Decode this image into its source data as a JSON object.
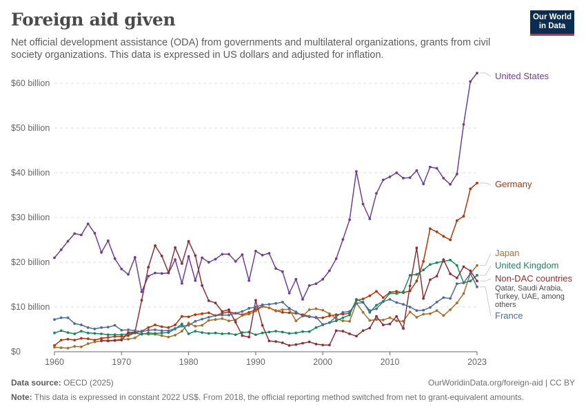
{
  "header": {
    "title": "Foreign aid given",
    "subtitle": "Net official development assistance (ODA) from governments and multilateral organizations, grants from civil society organizations. This data is expressed in US dollars and adjusted for inflation.",
    "logo_line1": "Our World",
    "logo_line2": "in Data"
  },
  "footer": {
    "source_label": "Data source:",
    "source_text": "OECD (2025)",
    "license": "OurWorldinData.org/foreign-aid | CC BY",
    "note_label": "Note:",
    "note_text": "This data is expressed in constant 2022 US$. From 2018, the official reporting method switched from net to grant-equivalent amounts."
  },
  "chart_data": {
    "type": "line",
    "x_start": 1960,
    "xlim": [
      1960,
      2023
    ],
    "ylim": [
      0,
      62
    ],
    "y_ticks": [
      0,
      10,
      20,
      30,
      40,
      50,
      60
    ],
    "y_tick_labels": [
      "$0",
      "$10 billion",
      "$20 billion",
      "$30 billion",
      "$40 billion",
      "$50 billion",
      "$60 billion"
    ],
    "x_ticks": [
      1960,
      1970,
      1980,
      1990,
      2000,
      2010,
      2023
    ],
    "x_tick_labels": [
      "1960",
      "1970",
      "1980",
      "1990",
      "2000",
      "2010",
      "2023"
    ],
    "grid": "horizontal dashed",
    "legend": "right, labels at line ends",
    "series": [
      {
        "name": "United States",
        "color": "#6d3e91",
        "values": [
          21.0,
          22.8,
          24.7,
          26.4,
          26.1,
          28.6,
          26.5,
          22.2,
          24.8,
          20.8,
          18.5,
          17.3,
          21.1,
          13.4,
          16.9,
          17.6,
          17.5,
          17.6,
          20.6,
          15.3,
          21.3,
          15.9,
          21.0,
          20.0,
          20.7,
          21.8,
          21.8,
          20.2,
          21.7,
          15.9,
          22.5,
          21.6,
          22.0,
          18.6,
          17.9,
          13.1,
          16.2,
          11.7,
          14.8,
          15.2,
          16.2,
          18.1,
          20.8,
          25.1,
          29.5,
          40.3,
          33.0,
          29.7,
          35.4,
          38.4,
          39.1,
          40.0,
          38.8,
          38.9,
          40.5,
          37.5,
          41.3,
          41.0,
          38.8,
          37.4,
          39.7,
          50.8,
          60.4,
          62.3
        ],
        "end_label": [
          "United States"
        ]
      },
      {
        "name": "Germany",
        "color": "#b13507",
        "values": [
          1.4,
          2.6,
          2.8,
          2.6,
          3.0,
          2.9,
          2.6,
          3.0,
          3.2,
          3.4,
          3.4,
          3.6,
          4.2,
          4.6,
          5.4,
          6.0,
          5.6,
          5.4,
          6.0,
          7.9,
          7.8,
          8.3,
          8.5,
          8.7,
          8.1,
          8.6,
          8.9,
          8.6,
          8.3,
          8.8,
          9.4,
          10.2,
          9.8,
          9.2,
          8.8,
          8.7,
          8.6,
          8.3,
          7.9,
          7.6,
          7.6,
          8.0,
          8.3,
          8.4,
          8.6,
          11.5,
          11.8,
          12.5,
          13.5,
          12.1,
          13.3,
          13.5,
          13.2,
          13.6,
          15.8,
          20.2,
          27.5,
          26.8,
          25.8,
          25.0,
          29.3,
          30.3,
          36.4,
          37.7
        ],
        "end_label": [
          "Germany"
        ]
      },
      {
        "name": "Japan",
        "color": "#a2702d",
        "values": [
          1.0,
          0.9,
          0.8,
          1.2,
          1.1,
          1.8,
          2.2,
          2.4,
          2.5,
          2.6,
          2.8,
          2.8,
          3.1,
          4.1,
          3.9,
          3.9,
          3.6,
          3.3,
          3.7,
          4.6,
          6.4,
          5.7,
          5.9,
          7.0,
          7.2,
          7.4,
          6.9,
          7.1,
          8.1,
          8.4,
          9.1,
          10.1,
          9.8,
          9.1,
          9.4,
          9.5,
          6.9,
          8.0,
          9.4,
          9.6,
          9.3,
          8.5,
          7.4,
          6.9,
          6.8,
          10.9,
          8.8,
          7.0,
          7.2,
          7.1,
          7.6,
          6.9,
          6.8,
          8.9,
          7.7,
          8.4,
          8.5,
          9.2,
          8.1,
          9.4,
          10.9,
          13.0,
          17.5,
          19.3
        ],
        "end_label": [
          "Japan"
        ]
      },
      {
        "name": "United Kingdom",
        "color": "#18875d",
        "values": [
          4.2,
          4.7,
          4.3,
          4.0,
          4.6,
          4.2,
          4.1,
          4.0,
          3.8,
          3.8,
          3.8,
          4.0,
          4.2,
          3.9,
          4.2,
          4.1,
          4.2,
          4.3,
          5.1,
          6.2,
          4.0,
          4.6,
          4.3,
          4.1,
          4.2,
          4.0,
          4.1,
          3.8,
          4.3,
          4.4,
          3.8,
          4.2,
          4.4,
          4.6,
          4.4,
          4.1,
          4.2,
          4.5,
          4.5,
          5.4,
          6.0,
          6.5,
          6.9,
          7.6,
          8.2,
          11.7,
          11.1,
          8.8,
          10.4,
          11.3,
          13.1,
          13.0,
          13.4,
          17.1,
          17.3,
          18.3,
          19.5,
          19.9,
          20.2,
          20.5,
          19.3,
          15.4,
          15.8,
          17.1
        ],
        "end_label": [
          "United Kingdom"
        ]
      },
      {
        "name": "Non-DAC countries",
        "color": "#883039",
        "values": [
          null,
          null,
          null,
          null,
          null,
          null,
          null,
          2.5,
          2.4,
          2.5,
          2.6,
          4.3,
          4.4,
          11.5,
          18.9,
          23.7,
          21.4,
          17.7,
          23.3,
          19.7,
          24.7,
          21.5,
          14.8,
          11.4,
          10.9,
          9.0,
          9.4,
          6.6,
          3.6,
          3.3,
          11.5,
          5.9,
          2.4,
          2.3,
          2.0,
          1.4,
          1.6,
          1.9,
          2.2,
          1.7,
          1.5,
          1.5,
          4.7,
          4.6,
          4.0,
          3.5,
          4.7,
          5.3,
          7.9,
          6.0,
          6.2,
          7.9,
          5.2,
          14.7,
          23.2,
          11.9,
          16.1,
          16.9,
          20.6,
          17.4,
          16.5,
          19.0,
          18.1,
          15.8
        ],
        "end_label": [
          "Non-DAC countries"
        ]
      },
      {
        "name": "France",
        "color": "#4c6a9c",
        "values": [
          7.2,
          7.6,
          7.6,
          6.3,
          6.0,
          5.4,
          5.1,
          5.4,
          5.5,
          5.9,
          4.8,
          4.9,
          4.7,
          4.5,
          4.8,
          4.9,
          4.7,
          4.7,
          5.2,
          5.7,
          5.9,
          6.8,
          7.3,
          7.7,
          8.1,
          8.2,
          8.2,
          8.6,
          9.0,
          9.7,
          10.0,
          10.5,
          10.6,
          10.8,
          11.1,
          9.7,
          8.9,
          8.0,
          7.8,
          7.7,
          6.1,
          6.5,
          7.9,
          8.8,
          9.0,
          10.8,
          11.0,
          9.2,
          9.6,
          11.2,
          11.7,
          11.0,
          10.6,
          10.0,
          9.2,
          9.3,
          9.9,
          11.1,
          12.1,
          11.9,
          15.2,
          15.4,
          17.5,
          14.5
        ],
        "end_label": [
          "France"
        ]
      }
    ],
    "annotation": [
      "Qatar, Saudi Arabia,",
      "Turkey, UAE, among",
      "others"
    ]
  }
}
